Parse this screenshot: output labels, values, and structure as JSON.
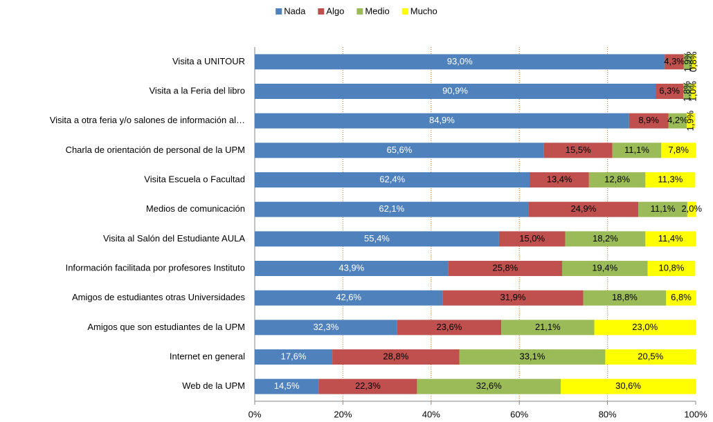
{
  "chart_data": {
    "type": "stacked_bar_horizontal",
    "categories": [
      "Visita a UNITOUR",
      "Visita a la Feria del libro",
      "Visita a otra feria y/o salones de información al…",
      "Charla de orientación de personal de la UPM",
      "Visita Escuela o Facultad",
      "Medios de comunicación",
      "Visita al Salón del Estudiante AULA",
      "Información facilitada por profesores Instituto",
      "Amigos de estudiantes otras Universidades",
      "Amigos que son estudiantes de la UPM",
      "Internet  en general",
      "Web de la UPM"
    ],
    "series": [
      {
        "name": "Nada",
        "color": "#4f81bd",
        "values": [
          93.0,
          90.9,
          84.9,
          65.6,
          62.4,
          62.1,
          55.4,
          43.9,
          42.6,
          32.3,
          17.6,
          14.5
        ],
        "value_labels": [
          "93,0%",
          "90,9%",
          "84,9%",
          "65,6%",
          "62,4%",
          "62,1%",
          "55,4%",
          "43,9%",
          "42,6%",
          "32,3%",
          "17,6%",
          "14,5%"
        ]
      },
      {
        "name": "Algo",
        "color": "#c0504d",
        "values": [
          4.3,
          6.3,
          8.9,
          15.5,
          13.4,
          24.9,
          15.0,
          25.8,
          31.9,
          23.6,
          28.8,
          22.3
        ],
        "value_labels": [
          "4,3%",
          "6,3%",
          "8,9%",
          "15,5%",
          "13,4%",
          "24,9%",
          "15,0%",
          "25,8%",
          "31,9%",
          "23,6%",
          "28,8%",
          "22,3%"
        ]
      },
      {
        "name": "Medio",
        "color": "#9bbb59",
        "values": [
          1.9,
          1.8,
          4.2,
          11.1,
          12.8,
          11.1,
          18.2,
          19.4,
          18.8,
          21.1,
          33.1,
          32.6
        ],
        "value_labels": [
          "1,9%",
          "1,8%",
          "4,2%",
          "11,1%",
          "12,8%",
          "11,1%",
          "18,2%",
          "19,4%",
          "18,8%",
          "21,1%",
          "33,1%",
          "32,6%"
        ]
      },
      {
        "name": "Mucho",
        "color": "#ffff00",
        "values": [
          0.8,
          1.0,
          1.9,
          7.8,
          11.3,
          2.0,
          11.4,
          10.8,
          6.8,
          23.0,
          20.5,
          30.6
        ],
        "value_labels": [
          "0,8%",
          "1,0%",
          "1,9%",
          "7,8%",
          "11,3%",
          "2,0%",
          "11,4%",
          "10,8%",
          "6,8%",
          "23,0%",
          "20,5%",
          "30,6%"
        ]
      }
    ],
    "xlim": [
      0,
      100
    ],
    "xticks": [
      {
        "value": 0,
        "label": "0%"
      },
      {
        "value": 20,
        "label": "20%"
      },
      {
        "value": 40,
        "label": "40%"
      },
      {
        "value": 60,
        "label": "60%"
      },
      {
        "value": 80,
        "label": "80%"
      },
      {
        "value": 100,
        "label": "100%"
      }
    ],
    "grid": true,
    "legend": "top"
  }
}
